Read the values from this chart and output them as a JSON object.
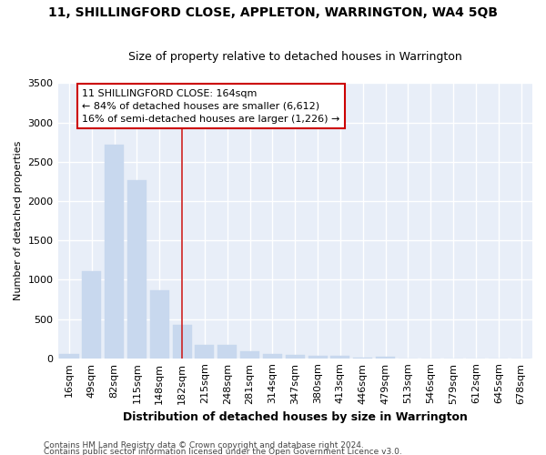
{
  "title": "11, SHILLINGFORD CLOSE, APPLETON, WARRINGTON, WA4 5QB",
  "subtitle": "Size of property relative to detached houses in Warrington",
  "xlabel": "Distribution of detached houses by size in Warrington",
  "ylabel": "Number of detached properties",
  "bar_labels": [
    "16sqm",
    "49sqm",
    "82sqm",
    "115sqm",
    "148sqm",
    "182sqm",
    "215sqm",
    "248sqm",
    "281sqm",
    "314sqm",
    "347sqm",
    "380sqm",
    "413sqm",
    "446sqm",
    "479sqm",
    "513sqm",
    "546sqm",
    "579sqm",
    "612sqm",
    "645sqm",
    "678sqm"
  ],
  "bar_values": [
    50,
    1110,
    2720,
    2270,
    870,
    420,
    170,
    165,
    90,
    60,
    45,
    35,
    30,
    5,
    25,
    0,
    0,
    0,
    0,
    0,
    0
  ],
  "bar_color_default": "#c8d8ee",
  "vline_index": 5,
  "vline_color": "#cc2222",
  "annotation_text": "11 SHILLINGFORD CLOSE: 164sqm\n← 84% of detached houses are smaller (6,612)\n16% of semi-detached houses are larger (1,226) →",
  "annotation_box_color": "#ffffff",
  "annotation_box_edge": "#cc0000",
  "ylim": [
    0,
    3500
  ],
  "yticks": [
    0,
    500,
    1000,
    1500,
    2000,
    2500,
    3000,
    3500
  ],
  "footer_line1": "Contains HM Land Registry data © Crown copyright and database right 2024.",
  "footer_line2": "Contains public sector information licensed under the Open Government Licence v3.0.",
  "bg_color": "#e8eef8",
  "grid_color": "#ffffff",
  "title_fontsize": 10,
  "subtitle_fontsize": 9,
  "xlabel_fontsize": 9,
  "ylabel_fontsize": 8,
  "tick_fontsize": 8,
  "footer_fontsize": 6.5,
  "ann_fontsize": 8
}
